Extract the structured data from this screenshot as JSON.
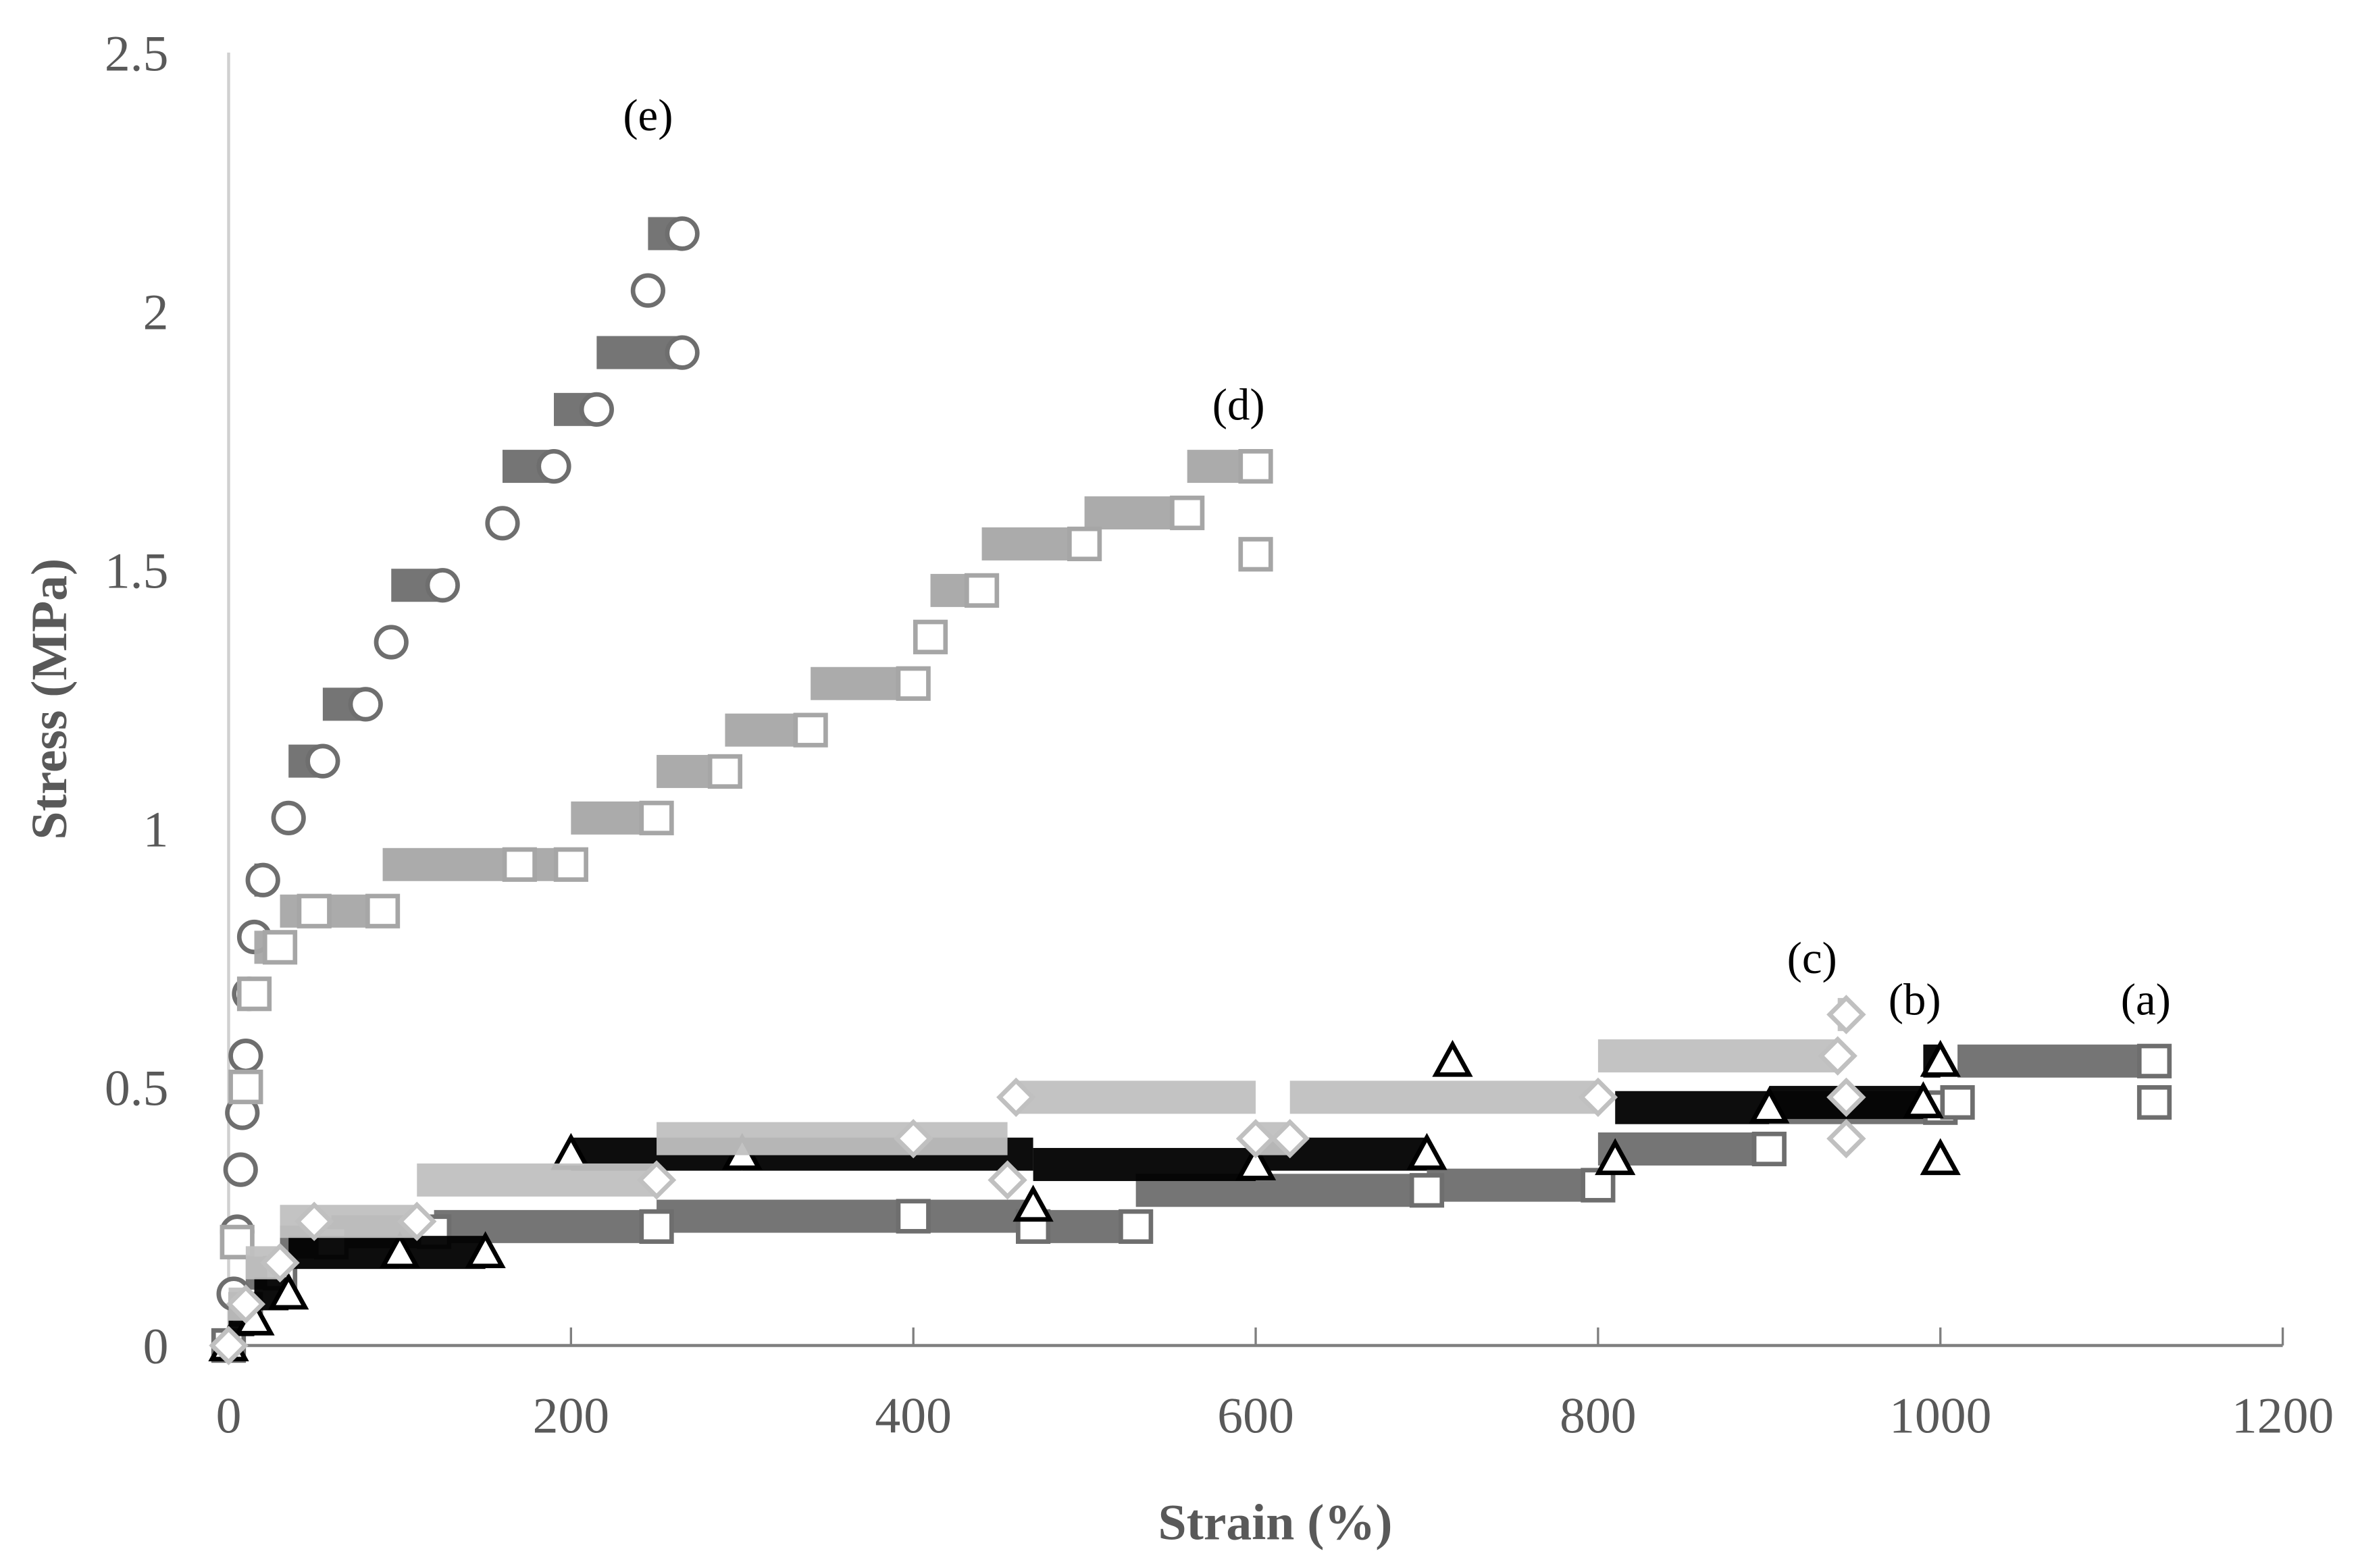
{
  "chart_data": {
    "type": "scatter",
    "title": "",
    "xlabel": "Strain (%)",
    "ylabel": "Stress (MPa)",
    "xlim": [
      0,
      1200
    ],
    "ylim": [
      0,
      2.5
    ],
    "xticks": [
      "0",
      "200",
      "400",
      "600",
      "800",
      "1000",
      "1200"
    ],
    "yticks": [
      "0",
      "0.5",
      "1",
      "1.5",
      "2",
      "2.5"
    ],
    "grid": false,
    "legend": "none (curves labelled inline)",
    "series": [
      {
        "name": "(a)",
        "marker": "square-open",
        "color": "#6e6e6e",
        "x": [
          0,
          10,
          30,
          60,
          120,
          250,
          400,
          470,
          530,
          700,
          800,
          900,
          1000,
          1010,
          1125,
          1125
        ],
        "y": [
          0,
          0.07,
          0.14,
          0.2,
          0.22,
          0.23,
          0.25,
          0.23,
          0.23,
          0.3,
          0.31,
          0.38,
          0.46,
          0.47,
          0.55,
          0.47
        ]
      },
      {
        "name": "(b)",
        "marker": "triangle-open",
        "color": "#000000",
        "x": [
          0,
          15,
          35,
          100,
          150,
          200,
          300,
          470,
          600,
          700,
          715,
          810,
          900,
          990,
          1000,
          1000
        ],
        "y": [
          0,
          0.05,
          0.1,
          0.18,
          0.18,
          0.37,
          0.37,
          0.27,
          0.35,
          0.37,
          0.55,
          0.36,
          0.46,
          0.47,
          0.55,
          0.36
        ]
      },
      {
        "name": "(c)",
        "marker": "diamond-open",
        "color": "#c0c0c0",
        "x": [
          0,
          10,
          30,
          50,
          110,
          250,
          400,
          455,
          460,
          600,
          620,
          800,
          940,
          945,
          945,
          945
        ],
        "y": [
          0,
          0.08,
          0.16,
          0.24,
          0.24,
          0.32,
          0.4,
          0.32,
          0.48,
          0.4,
          0.4,
          0.48,
          0.56,
          0.64,
          0.48,
          0.4
        ]
      },
      {
        "name": "(d)",
        "marker": "square-open",
        "color": "#a6a6a6",
        "x": [
          0,
          5,
          10,
          15,
          30,
          50,
          90,
          170,
          200,
          250,
          290,
          340,
          400,
          410,
          440,
          500,
          560,
          600,
          600
        ],
        "y": [
          0,
          0.2,
          0.5,
          0.68,
          0.77,
          0.84,
          0.84,
          0.93,
          0.93,
          1.02,
          1.11,
          1.19,
          1.28,
          1.37,
          1.46,
          1.55,
          1.61,
          1.7,
          1.53
        ]
      },
      {
        "name": "(e)",
        "marker": "circle-open",
        "color": "#6e6e6e",
        "x": [
          0,
          3,
          5,
          7,
          8,
          10,
          12,
          15,
          20,
          35,
          55,
          80,
          95,
          125,
          160,
          190,
          215,
          265,
          245,
          265
        ],
        "y": [
          0,
          0.1,
          0.22,
          0.34,
          0.45,
          0.56,
          0.68,
          0.79,
          0.9,
          1.02,
          1.13,
          1.24,
          1.36,
          1.47,
          1.59,
          1.7,
          1.81,
          1.92,
          2.04,
          2.15
        ]
      }
    ],
    "annotations": [
      {
        "text": "(a)",
        "x": 1120,
        "y": 0.64
      },
      {
        "text": "(b)",
        "x": 985,
        "y": 0.64
      },
      {
        "text": "(c)",
        "x": 925,
        "y": 0.72
      },
      {
        "text": "(d)",
        "x": 590,
        "y": 1.79
      },
      {
        "text": "(e)",
        "x": 245,
        "y": 2.35
      }
    ]
  }
}
